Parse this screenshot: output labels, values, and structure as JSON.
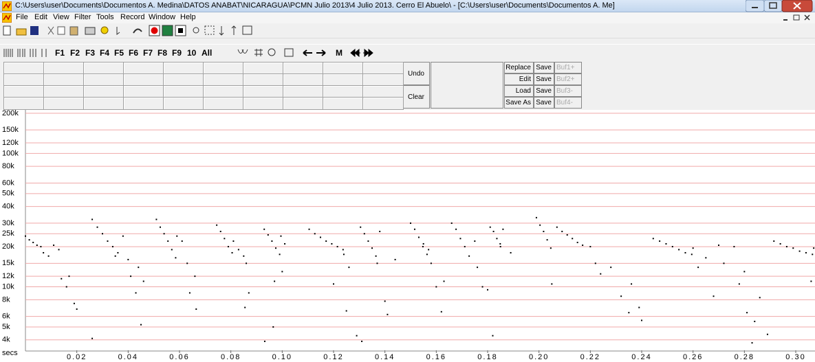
{
  "window": {
    "title": "C:\\Users\\user\\Documents\\Documentos A. Medina\\DATOS ANABAT\\NICARAGUA\\PCMN Julio 2013\\4 Julio 2013. Cerro El Abuelo\\ - [C:\\Users\\user\\Documents\\Documentos A. Me]",
    "menu": [
      "File",
      "Edit",
      "View",
      "Filter",
      "Tools",
      "Record",
      "Window",
      "Help"
    ],
    "toolbar": [
      "F1",
      "F2",
      "F3",
      "F4",
      "F5",
      "F6",
      "F7",
      "F8",
      "F9",
      "10",
      "All",
      "M"
    ],
    "panel": {
      "undo": "Undo",
      "clear": "Clear",
      "actions": [
        "Replace",
        "Edit",
        "Load",
        "Save As"
      ],
      "save": [
        "Save",
        "Save",
        "Save",
        "Save"
      ],
      "buffers": [
        "Buf1+",
        "Buf2+",
        "Buf3-",
        "Buf4-"
      ]
    }
  },
  "chart_data": {
    "type": "scatter",
    "x_label": "secs",
    "log_y": true,
    "grid": true,
    "color": "#000000",
    "grid_color": "#f0a8a8",
    "xlim": [
      0,
      0.3075
    ],
    "xticks": [
      0.02,
      0.04,
      0.06,
      0.08,
      0.1,
      0.12,
      0.14,
      0.16,
      0.18,
      0.2,
      0.22,
      0.24,
      0.26,
      0.28,
      0.3
    ],
    "ylim": [
      3340,
      212000
    ],
    "yticks": [
      {
        "value": 4000,
        "label": "4k"
      },
      {
        "value": 5000,
        "label": "5k"
      },
      {
        "value": 6000,
        "label": "6k"
      },
      {
        "value": 8000,
        "label": "8k"
      },
      {
        "value": 10000,
        "label": "10k"
      },
      {
        "value": 12000,
        "label": "12k"
      },
      {
        "value": 15000,
        "label": "15k"
      },
      {
        "value": 20000,
        "label": "20k"
      },
      {
        "value": 25000,
        "label": "25k"
      },
      {
        "value": 30000,
        "label": "30k"
      },
      {
        "value": 40000,
        "label": "40k"
      },
      {
        "value": 50000,
        "label": "50k"
      },
      {
        "value": 60000,
        "label": "60k"
      },
      {
        "value": 80000,
        "label": "80k"
      },
      {
        "value": 100000,
        "label": "100k"
      },
      {
        "value": 120000,
        "label": "120k"
      },
      {
        "value": 150000,
        "label": "150k"
      },
      {
        "value": 200000,
        "label": "200k"
      }
    ],
    "x": [
      0.0,
      0.0015,
      0.003,
      0.0045,
      0.006,
      0.007,
      0.009,
      0.011,
      0.013,
      0.014,
      0.016,
      0.017,
      0.019,
      0.02,
      0.026,
      0.026,
      0.028,
      0.03,
      0.032,
      0.034,
      0.036,
      0.035,
      0.038,
      0.04,
      0.041,
      0.043,
      0.044,
      0.045,
      0.046,
      0.051,
      0.0525,
      0.054,
      0.0555,
      0.057,
      0.0585,
      0.059,
      0.061,
      0.063,
      0.064,
      0.066,
      0.0665,
      0.0745,
      0.076,
      0.0775,
      0.079,
      0.0805,
      0.081,
      0.083,
      0.085,
      0.086,
      0.087,
      0.0855,
      0.093,
      0.0945,
      0.096,
      0.0975,
      0.099,
      0.0995,
      0.101,
      0.097,
      0.0965,
      0.0932,
      0.1,
      0.1105,
      0.1127,
      0.1149,
      0.1171,
      0.1193,
      0.1215,
      0.1237,
      0.124,
      0.12,
      0.125,
      0.129,
      0.131,
      0.126,
      0.1305,
      0.132,
      0.1335,
      0.135,
      0.1365,
      0.138,
      0.137,
      0.14,
      0.141,
      0.144,
      0.15,
      0.1516,
      0.1532,
      0.1548,
      0.1564,
      0.157,
      0.158,
      0.16,
      0.163,
      0.155,
      0.162,
      0.166,
      0.1677,
      0.1694,
      0.1711,
      0.1728,
      0.175,
      0.178,
      0.18,
      0.176,
      0.181,
      0.1823,
      0.1836,
      0.1849,
      0.186,
      0.189,
      0.185,
      0.182,
      0.199,
      0.2004,
      0.2018,
      0.2032,
      0.2046,
      0.205,
      0.207,
      0.209,
      0.211,
      0.213,
      0.215,
      0.217,
      0.22,
      0.222,
      0.224,
      0.228,
      0.235,
      0.239,
      0.236,
      0.24,
      0.232,
      0.2445,
      0.247,
      0.2495,
      0.252,
      0.2545,
      0.257,
      0.2595,
      0.26,
      0.262,
      0.265,
      0.27,
      0.268,
      0.272,
      0.276,
      0.278,
      0.281,
      0.284,
      0.286,
      0.289,
      0.283,
      0.28,
      0.2915,
      0.294,
      0.2965,
      0.299,
      0.3015,
      0.304,
      0.3065,
      0.307,
      0.306
    ],
    "values": [
      24000,
      22500,
      21500,
      20500,
      20000,
      18000,
      17000,
      20500,
      19000,
      11500,
      10000,
      12000,
      7500,
      6800,
      4100,
      32000,
      28000,
      25000,
      22000,
      20000,
      18000,
      17000,
      24000,
      16000,
      12000,
      9000,
      14000,
      5200,
      11000,
      32000,
      28000,
      25000,
      22000,
      19000,
      16500,
      24000,
      22000,
      15000,
      9000,
      12000,
      6800,
      29000,
      26000,
      23000,
      20000,
      18000,
      22000,
      19000,
      17000,
      15000,
      9000,
      7000,
      27000,
      24500,
      22000,
      19500,
      17500,
      24000,
      21000,
      11000,
      5000,
      3900,
      13000,
      27000,
      25000,
      23500,
      22000,
      21000,
      20000,
      19000,
      17500,
      10500,
      6600,
      4300,
      3900,
      14000,
      28000,
      25000,
      22000,
      19500,
      17000,
      26000,
      15000,
      7800,
      6200,
      16000,
      30000,
      27000,
      23500,
      20000,
      17500,
      19000,
      15000,
      10000,
      11000,
      21000,
      6500,
      30000,
      27000,
      23000,
      20000,
      17000,
      22000,
      10000,
      9500,
      14000,
      28000,
      26000,
      23000,
      21000,
      27000,
      18000,
      20000,
      4300,
      33000,
      29000,
      26000,
      22500,
      19500,
      10500,
      28000,
      26000,
      24500,
      23000,
      21500,
      20500,
      20000,
      15000,
      12500,
      14000,
      6400,
      7000,
      10500,
      5600,
      8500,
      23000,
      22000,
      21000,
      20000,
      19000,
      18000,
      17500,
      19500,
      14000,
      16500,
      20500,
      8500,
      15000,
      20000,
      10500,
      6400,
      5500,
      8300,
      4400,
      3800,
      13000,
      22000,
      21000,
      20000,
      19500,
      18500,
      18000,
      17500,
      19500,
      11000
    ]
  }
}
